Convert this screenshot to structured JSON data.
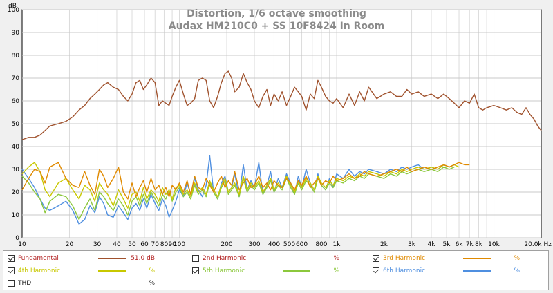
{
  "chart_data": {
    "type": "line",
    "title": "Distortion, 1/6 octave smoothing",
    "subtitle": "Audax HM210C0 + SS 10F8424 In Room",
    "ylabel": "dB",
    "xlabel": "",
    "x_unit": "Hz",
    "x_scale": "log",
    "xlim": [
      10,
      20000
    ],
    "ylim": [
      0,
      100
    ],
    "grid": true,
    "legend_position": "bottom",
    "y_ticks": [
      0,
      10,
      20,
      30,
      40,
      50,
      60,
      70,
      80,
      90,
      100
    ],
    "x_ticks": [
      {
        "v": 10,
        "l": "10"
      },
      {
        "v": 20,
        "l": "20"
      },
      {
        "v": 30,
        "l": "30"
      },
      {
        "v": 40,
        "l": "40"
      },
      {
        "v": 50,
        "l": "50"
      },
      {
        "v": 60,
        "l": "60"
      },
      {
        "v": 70,
        "l": "70"
      },
      {
        "v": 80,
        "l": "80"
      },
      {
        "v": 90,
        "l": "90"
      },
      {
        "v": 100,
        "l": "100"
      },
      {
        "v": 200,
        "l": "200"
      },
      {
        "v": 300,
        "l": "300"
      },
      {
        "v": 400,
        "l": "400"
      },
      {
        "v": 500,
        "l": "500"
      },
      {
        "v": 600,
        "l": "600"
      },
      {
        "v": 800,
        "l": "800"
      },
      {
        "v": 1000,
        "l": "1k"
      },
      {
        "v": 2000,
        "l": "2k"
      },
      {
        "v": 3000,
        "l": "3k"
      },
      {
        "v": 4000,
        "l": "4k"
      },
      {
        "v": 5000,
        "l": "5k"
      },
      {
        "v": 6000,
        "l": "6k"
      },
      {
        "v": 7000,
        "l": "7k"
      },
      {
        "v": 8000,
        "l": "8k"
      },
      {
        "v": 10000,
        "l": "10k"
      },
      {
        "v": 20000,
        "l": "20.0k Hz"
      }
    ],
    "series": [
      {
        "name": "Fundamental",
        "color": "#a0522d",
        "checked": true,
        "value": "51.0 dB",
        "x": [
          10,
          11,
          12,
          13,
          14,
          15,
          17,
          19,
          21,
          23,
          25,
          27,
          29,
          31,
          33,
          35,
          38,
          41,
          44,
          47,
          50,
          53,
          56,
          59,
          62,
          66,
          70,
          74,
          78,
          82,
          86,
          90,
          95,
          100,
          106,
          112,
          118,
          125,
          132,
          140,
          148,
          156,
          165,
          175,
          185,
          195,
          205,
          215,
          225,
          240,
          255,
          270,
          285,
          300,
          320,
          340,
          360,
          380,
          400,
          425,
          450,
          480,
          510,
          540,
          570,
          600,
          640,
          680,
          720,
          760,
          800,
          850,
          900,
          950,
          1000,
          1100,
          1200,
          1300,
          1400,
          1500,
          1600,
          1800,
          2000,
          2200,
          2400,
          2600,
          2800,
          3000,
          3300,
          3600,
          4000,
          4400,
          4800,
          5200,
          5600,
          6000,
          6500,
          7000,
          7500,
          8000,
          8500,
          9000,
          10000,
          11000,
          12000,
          13000,
          14000,
          15000,
          16000,
          17000,
          18000,
          19000,
          20000
        ],
        "y": [
          43,
          44,
          44,
          45,
          47,
          49,
          50,
          51,
          53,
          56,
          58,
          61,
          63,
          65,
          67,
          68,
          66,
          65,
          62,
          60,
          63,
          68,
          69,
          65,
          67,
          70,
          68,
          58,
          60,
          59,
          58,
          62,
          66,
          69,
          63,
          58,
          59,
          61,
          69,
          70,
          69,
          60,
          57,
          62,
          68,
          72,
          73,
          70,
          64,
          66,
          72,
          68,
          65,
          60,
          57,
          62,
          65,
          58,
          63,
          60,
          64,
          58,
          62,
          66,
          64,
          62,
          56,
          63,
          61,
          69,
          66,
          62,
          60,
          59,
          61,
          57,
          63,
          58,
          64,
          60,
          66,
          61,
          63,
          64,
          62,
          62,
          65,
          63,
          64,
          62,
          63,
          61,
          63,
          61,
          59,
          57,
          60,
          59,
          63,
          57,
          56,
          57,
          58,
          57,
          56,
          57,
          55,
          54,
          57,
          54,
          52,
          49,
          47
        ]
      },
      {
        "name": "2nd Harmonic",
        "color": "#b22222",
        "checked": false,
        "value": "%",
        "x": [],
        "y": []
      },
      {
        "name": "3rd Harmonic",
        "color": "#e08a00",
        "checked": true,
        "value": "%",
        "x": [
          10,
          11,
          12,
          13,
          14,
          15,
          17,
          19,
          21,
          23,
          25,
          27,
          29,
          31,
          33,
          35,
          38,
          41,
          44,
          47,
          50,
          53,
          56,
          59,
          62,
          66,
          70,
          74,
          78,
          82,
          86,
          90,
          95,
          100,
          106,
          112,
          118,
          125,
          132,
          140,
          148,
          156,
          165,
          175,
          185,
          195,
          205,
          215,
          225,
          240,
          255,
          270,
          285,
          300,
          320,
          340,
          360,
          380,
          400,
          425,
          450,
          480,
          510,
          540,
          570,
          600,
          640,
          680,
          720,
          760,
          800,
          850,
          900,
          950,
          1000,
          1100,
          1200,
          1300,
          1400,
          1500,
          1600,
          1800,
          2000,
          2200,
          2400,
          2600,
          2800,
          3000,
          3300,
          3600,
          4000,
          4400,
          4800,
          5200,
          5600,
          6000,
          6500,
          7000
        ],
        "y": [
          21,
          26,
          30,
          29,
          24,
          31,
          33,
          26,
          23,
          22,
          29,
          23,
          19,
          30,
          27,
          22,
          26,
          31,
          20,
          17,
          24,
          18,
          22,
          25,
          20,
          26,
          21,
          23,
          19,
          22,
          18,
          23,
          21,
          24,
          20,
          25,
          19,
          27,
          22,
          21,
          26,
          23,
          20,
          24,
          27,
          22,
          25,
          23,
          29,
          21,
          24,
          26,
          22,
          23,
          27,
          22,
          24,
          21,
          25,
          23,
          22,
          26,
          24,
          21,
          25,
          23,
          27,
          22,
          24,
          26,
          23,
          25,
          24,
          27,
          25,
          26,
          28,
          26,
          27,
          29,
          28,
          27,
          28,
          29,
          30,
          29,
          31,
          29,
          30,
          31,
          30,
          31,
          32,
          31,
          32,
          33,
          32,
          32
        ]
      },
      {
        "name": "4th Harmonic",
        "color": "#c8c800",
        "checked": true,
        "value": "%",
        "x": [
          10,
          11,
          12,
          13,
          14,
          15,
          17,
          19,
          21,
          23,
          25,
          27,
          29,
          31,
          33,
          35,
          38,
          41,
          44,
          47,
          50,
          53,
          56,
          59,
          62,
          66,
          70,
          74,
          78,
          82,
          86,
          90,
          95,
          100,
          106,
          112,
          118,
          125,
          132,
          140,
          148,
          156,
          165,
          175,
          185,
          195,
          205,
          215,
          225,
          240,
          255,
          270,
          285,
          300,
          320,
          340,
          360,
          380,
          400,
          425,
          450,
          480,
          510,
          540,
          570,
          600,
          640,
          680,
          720,
          760,
          800,
          850,
          900,
          950,
          1000,
          1100,
          1200,
          1300,
          1400,
          1500,
          1600,
          1800,
          2000,
          2200,
          2400,
          2600,
          2800,
          3000,
          3300,
          3600,
          4000,
          4400,
          4800,
          5200,
          5600,
          6000
        ],
        "y": [
          28,
          31,
          33,
          29,
          21,
          18,
          24,
          26,
          21,
          17,
          23,
          21,
          16,
          24,
          21,
          19,
          14,
          21,
          17,
          13,
          19,
          20,
          16,
          22,
          17,
          21,
          19,
          16,
          22,
          19,
          21,
          17,
          22,
          23,
          19,
          21,
          18,
          24,
          20,
          22,
          19,
          25,
          21,
          18,
          23,
          26,
          20,
          22,
          24,
          19,
          27,
          21,
          24,
          22,
          25,
          20,
          23,
          26,
          21,
          24,
          22,
          27,
          23,
          20,
          25,
          22,
          26,
          24,
          21,
          27,
          24,
          22,
          25,
          23,
          26,
          25,
          27,
          26,
          28,
          27,
          29,
          28,
          27,
          29,
          28,
          30,
          29,
          30,
          31,
          30,
          31,
          30,
          32,
          31,
          32,
          31
        ]
      },
      {
        "name": "5th Harmonic",
        "color": "#8cc83c",
        "checked": true,
        "value": "%",
        "x": [
          10,
          11,
          12,
          13,
          14,
          15,
          17,
          19,
          21,
          23,
          25,
          27,
          29,
          31,
          33,
          35,
          38,
          41,
          44,
          47,
          50,
          53,
          56,
          59,
          62,
          66,
          70,
          74,
          78,
          82,
          86,
          90,
          95,
          100,
          106,
          112,
          118,
          125,
          132,
          140,
          148,
          156,
          165,
          175,
          185,
          195,
          205,
          215,
          225,
          240,
          255,
          270,
          285,
          300,
          320,
          340,
          360,
          380,
          400,
          425,
          450,
          480,
          510,
          540,
          570,
          600,
          640,
          680,
          720,
          760,
          800,
          850,
          900,
          950,
          1000,
          1100,
          1200,
          1300,
          1400,
          1500,
          1600,
          1800,
          2000,
          2200,
          2400,
          2600,
          2800,
          3000,
          3300,
          3600,
          4000,
          4400,
          4800,
          5200,
          5600
        ],
        "y": [
          27,
          24,
          20,
          17,
          11,
          16,
          19,
          18,
          14,
          8,
          13,
          17,
          12,
          20,
          18,
          15,
          12,
          17,
          14,
          10,
          16,
          18,
          14,
          19,
          15,
          20,
          17,
          14,
          19,
          17,
          21,
          16,
          20,
          22,
          18,
          20,
          17,
          23,
          19,
          21,
          18,
          24,
          20,
          17,
          22,
          25,
          19,
          21,
          23,
          18,
          26,
          20,
          23,
          21,
          24,
          19,
          22,
          25,
          20,
          23,
          21,
          26,
          22,
          19,
          24,
          21,
          25,
          23,
          20,
          26,
          23,
          21,
          24,
          22,
          25,
          24,
          26,
          25,
          27,
          26,
          28,
          27,
          26,
          28,
          27,
          29,
          28,
          29,
          30,
          29,
          30,
          29,
          31,
          30,
          31
        ]
      },
      {
        "name": "6th Harmonic",
        "color": "#4f8fe0",
        "checked": true,
        "value": "%",
        "x": [
          10,
          11,
          12,
          13,
          14,
          15,
          17,
          19,
          21,
          23,
          25,
          27,
          29,
          31,
          33,
          35,
          38,
          41,
          44,
          47,
          50,
          53,
          56,
          59,
          62,
          66,
          70,
          74,
          78,
          82,
          86,
          90,
          95,
          100,
          106,
          112,
          118,
          125,
          132,
          140,
          148,
          156,
          165,
          175,
          185,
          195,
          205,
          215,
          225,
          240,
          255,
          270,
          285,
          300,
          320,
          340,
          360,
          380,
          400,
          425,
          450,
          480,
          510,
          540,
          570,
          600,
          640,
          680,
          720,
          760,
          800,
          850,
          900,
          950,
          1000,
          1100,
          1200,
          1300,
          1400,
          1500,
          1600,
          1800,
          2000,
          2200,
          2400,
          2600,
          2800,
          3000,
          3300,
          3600,
          4000,
          4400,
          4800,
          5200,
          5600
        ],
        "y": [
          30,
          26,
          22,
          17,
          13,
          12,
          14,
          16,
          12,
          6,
          8,
          14,
          11,
          18,
          15,
          10,
          9,
          14,
          11,
          8,
          13,
          15,
          12,
          17,
          13,
          19,
          15,
          12,
          17,
          14,
          9,
          12,
          16,
          21,
          18,
          24,
          19,
          26,
          21,
          18,
          23,
          36,
          20,
          17,
          24,
          27,
          20,
          22,
          28,
          18,
          32,
          21,
          25,
          22,
          33,
          19,
          23,
          29,
          20,
          26,
          22,
          28,
          24,
          19,
          27,
          22,
          30,
          24,
          21,
          28,
          23,
          21,
          26,
          22,
          28,
          26,
          30,
          27,
          29,
          28,
          30,
          29,
          28,
          30,
          29,
          31,
          30,
          31,
          32,
          30,
          31,
          30,
          32,
          31,
          32
        ]
      }
    ]
  },
  "legend": {
    "items": [
      {
        "name": "Fundamental",
        "value": "51.0 dB",
        "checked": true,
        "color": "#a0522d",
        "text_color": "#b22222"
      },
      {
        "name": "2nd Harmonic",
        "value": "%",
        "checked": false,
        "color": "",
        "text_color": "#b22222"
      },
      {
        "name": "3rd Harmonic",
        "value": "%",
        "checked": true,
        "color": "#e08a00",
        "text_color": "#e08a00"
      },
      {
        "name": "4th Harmonic",
        "value": "%",
        "checked": true,
        "color": "#c8c800",
        "text_color": "#c8c800"
      },
      {
        "name": "5th Harmonic",
        "value": "%",
        "checked": true,
        "color": "#8cc83c",
        "text_color": "#8cc83c"
      },
      {
        "name": "6th Harmonic",
        "value": "%",
        "checked": true,
        "color": "#4f8fe0",
        "text_color": "#4f8fe0"
      },
      {
        "name": "THD",
        "value": "%",
        "checked": false,
        "color": "",
        "text_color": "#222222"
      }
    ]
  }
}
